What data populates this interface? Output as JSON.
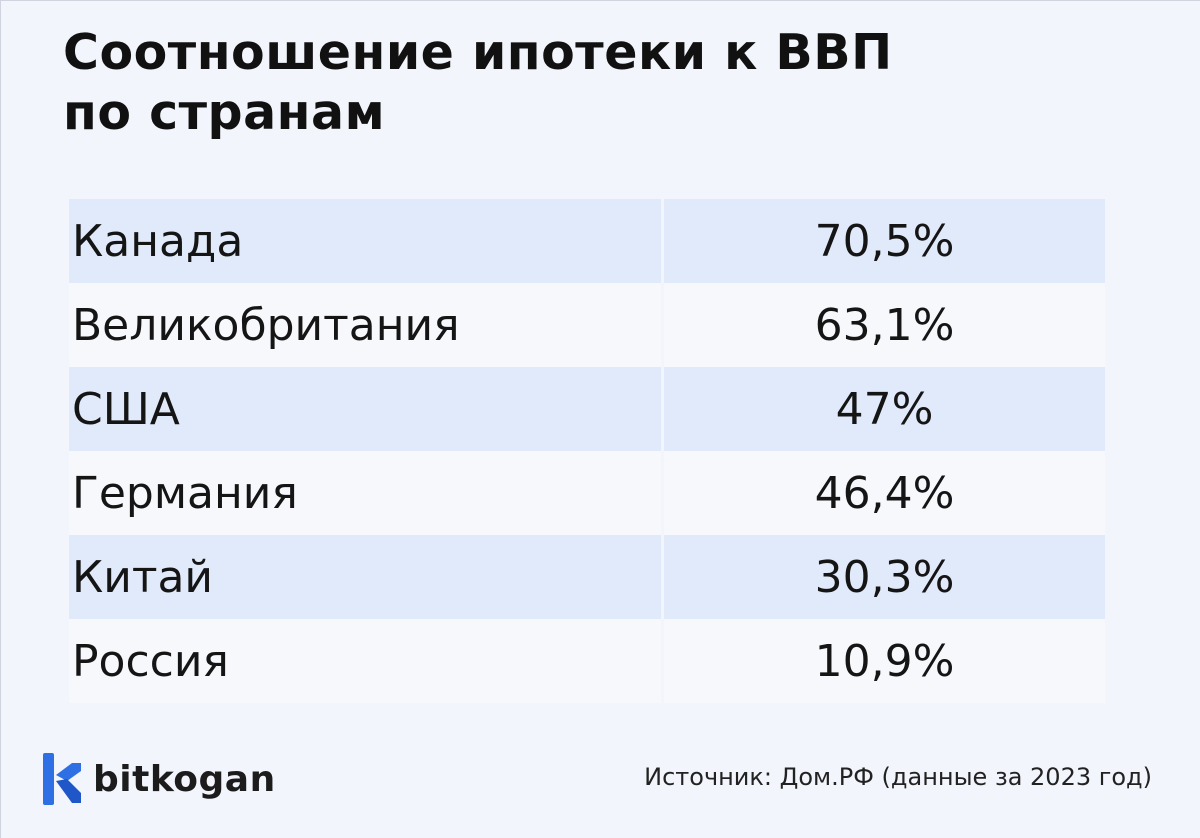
{
  "title_lines": [
    "Соотношение ипотеки к ВВП",
    "по странам"
  ],
  "chart_data": {
    "type": "table",
    "title": "Соотношение ипотеки к ВВП по странам",
    "columns": [
      "",
      ""
    ],
    "rows": [
      {
        "country": "Канада",
        "value": 70.5,
        "label": "70,5%"
      },
      {
        "country": "Великобритания",
        "value": 63.1,
        "label": "63,1%"
      },
      {
        "country": "США",
        "value": 47,
        "label": "47%"
      },
      {
        "country": "Германия",
        "value": 46.4,
        "label": "46,4%"
      },
      {
        "country": "Китай",
        "value": 30.3,
        "label": "30,3%"
      },
      {
        "country": "Россия",
        "value": 10.9,
        "label": "10,9%"
      }
    ],
    "units": "%"
  },
  "brand": {
    "name": "bitkogan",
    "logo_icon": "bitkogan-logo-icon",
    "color": "#2f6fe4"
  },
  "source_text": "Источник: Дом.РФ (данные за 2023 год)",
  "colors": {
    "background": "#f2f5fb",
    "row_highlight": "#e1eafa",
    "row_plain": "#f6f8fc"
  }
}
